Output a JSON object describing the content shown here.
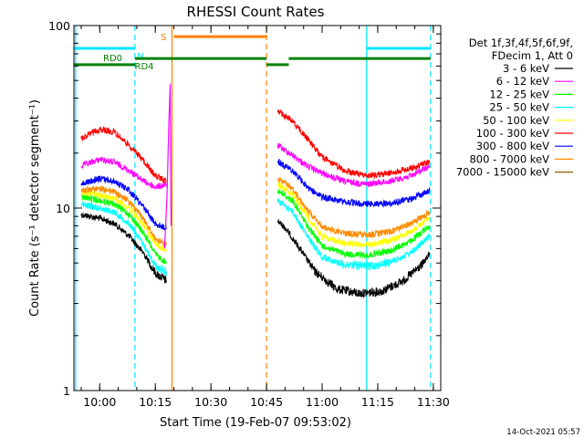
{
  "chart_data": {
    "type": "line",
    "title": "RHESSI Count Rates",
    "xlabel": "Start Time (19-Feb-07 09:53:02)",
    "ylabel": "Count Rate (s⁻¹ detector segment⁻¹)",
    "yscale": "log",
    "ylim": [
      1,
      100
    ],
    "xlim": [
      "09:53:02",
      "11:32:00"
    ],
    "x_ticks": [
      "10:00",
      "10:15",
      "10:30",
      "10:45",
      "11:00",
      "11:15",
      "11:30"
    ],
    "y_ticks": [
      "1",
      "10",
      "100"
    ],
    "footer_timestamp": "14-Oct-2021 05:57",
    "legend": {
      "header_line1": "Det 1f,3f,4f,5f,6f,9f,",
      "header_line2": "FDecim 1, Att 0",
      "placement": "right"
    },
    "series": [
      {
        "name": "3 - 6 keV",
        "color": "#000000",
        "segments": [
          [
            [
              "09:55",
              9.2
            ],
            [
              "10:00",
              8.8
            ],
            [
              "10:04",
              8.2
            ],
            [
              "10:08",
              7.0
            ],
            [
              "10:12",
              5.6
            ],
            [
              "10:15",
              4.4
            ],
            [
              "10:18",
              4.0
            ]
          ],
          [
            [
              "10:48",
              8.5
            ],
            [
              "10:50",
              7.8
            ],
            [
              "10:54",
              6.0
            ],
            [
              "10:58",
              4.5
            ],
            [
              "11:04",
              3.6
            ],
            [
              "11:10",
              3.4
            ],
            [
              "11:16",
              3.5
            ],
            [
              "11:22",
              4.0
            ],
            [
              "11:27",
              4.9
            ],
            [
              "11:29",
              5.6
            ]
          ]
        ]
      },
      {
        "name": "6 - 12 keV",
        "color": "#ff00ff",
        "segments": [
          [
            [
              "09:55",
              17
            ],
            [
              "10:00",
              18.5
            ],
            [
              "10:04",
              17.8
            ],
            [
              "10:08",
              16.0
            ],
            [
              "10:12",
              14.0
            ],
            [
              "10:15",
              13.0
            ],
            [
              "10:18",
              13.5
            ]
          ],
          [
            [
              "10:48",
              22
            ],
            [
              "10:52",
              19.5
            ],
            [
              "10:56",
              17.0
            ],
            [
              "11:00",
              15.5
            ],
            [
              "11:06",
              14.0
            ],
            [
              "11:12",
              13.5
            ],
            [
              "11:18",
              14.0
            ],
            [
              "11:24",
              15.0
            ],
            [
              "11:29",
              17.0
            ]
          ]
        ]
      },
      {
        "name": "12 - 25 keV",
        "color": "#00ff00",
        "segments": [
          [
            [
              "09:55",
              11.5
            ],
            [
              "10:00",
              11.0
            ],
            [
              "10:04",
              10.5
            ],
            [
              "10:08",
              9.2
            ],
            [
              "10:12",
              7.2
            ],
            [
              "10:15",
              5.6
            ],
            [
              "10:18",
              5.0
            ]
          ],
          [
            [
              "10:48",
              12.5
            ],
            [
              "10:52",
              11.0
            ],
            [
              "10:56",
              8.0
            ],
            [
              "11:00",
              6.2
            ],
            [
              "11:06",
              5.6
            ],
            [
              "11:12",
              5.5
            ],
            [
              "11:18",
              5.8
            ],
            [
              "11:24",
              6.6
            ],
            [
              "11:29",
              8.0
            ]
          ]
        ]
      },
      {
        "name": "25 - 50 keV",
        "color": "#00ffff",
        "segments": [
          [
            [
              "09:55",
              10.5
            ],
            [
              "10:00",
              10.0
            ],
            [
              "10:04",
              9.5
            ],
            [
              "10:08",
              8.2
            ],
            [
              "10:12",
              6.2
            ],
            [
              "10:15",
              4.8
            ],
            [
              "10:18",
              4.5
            ]
          ],
          [
            [
              "10:48",
              11.0
            ],
            [
              "10:52",
              9.6
            ],
            [
              "10:56",
              7.0
            ],
            [
              "11:00",
              5.4
            ],
            [
              "11:06",
              4.9
            ],
            [
              "11:12",
              4.8
            ],
            [
              "11:18",
              5.0
            ],
            [
              "11:24",
              5.7
            ],
            [
              "11:29",
              7.0
            ]
          ]
        ]
      },
      {
        "name": "50 - 100 keV",
        "color": "#ffff00",
        "segments": [
          [
            [
              "09:55",
              12.3
            ],
            [
              "10:00",
              11.8
            ],
            [
              "10:04",
              11.2
            ],
            [
              "10:08",
              10.0
            ],
            [
              "10:12",
              8.0
            ],
            [
              "10:15",
              6.4
            ],
            [
              "10:18",
              5.8
            ]
          ],
          [
            [
              "10:48",
              13.5
            ],
            [
              "10:52",
              12.0
            ],
            [
              "10:56",
              9.0
            ],
            [
              "11:00",
              7.0
            ],
            [
              "11:06",
              6.4
            ],
            [
              "11:12",
              6.3
            ],
            [
              "11:18",
              6.6
            ],
            [
              "11:24",
              7.4
            ],
            [
              "11:29",
              8.8
            ]
          ]
        ]
      },
      {
        "name": "100 - 300 keV",
        "color": "#ff0000",
        "segments": [
          [
            [
              "09:55",
              24
            ],
            [
              "10:00",
              27
            ],
            [
              "10:04",
              26
            ],
            [
              "10:08",
              22
            ],
            [
              "10:12",
              18
            ],
            [
              "10:15",
              15
            ],
            [
              "10:18",
              14
            ]
          ],
          [
            [
              "10:48",
              34
            ],
            [
              "10:52",
              30
            ],
            [
              "10:56",
              24
            ],
            [
              "11:00",
              19
            ],
            [
              "11:06",
              16
            ],
            [
              "11:12",
              15
            ],
            [
              "11:18",
              15.5
            ],
            [
              "11:24",
              16.5
            ],
            [
              "11:29",
              18
            ]
          ]
        ]
      },
      {
        "name": "300 - 800 keV",
        "color": "#0000ff",
        "segments": [
          [
            [
              "09:55",
              13.5
            ],
            [
              "10:00",
              14.5
            ],
            [
              "10:04",
              14.0
            ],
            [
              "10:08",
              12.5
            ],
            [
              "10:12",
              10.0
            ],
            [
              "10:15",
              8.2
            ],
            [
              "10:18",
              7.8
            ]
          ],
          [
            [
              "10:48",
              18
            ],
            [
              "10:52",
              16
            ],
            [
              "10:56",
              13
            ],
            [
              "11:00",
              11.5
            ],
            [
              "11:06",
              10.8
            ],
            [
              "11:12",
              10.5
            ],
            [
              "11:18",
              10.6
            ],
            [
              "11:24",
              11.2
            ],
            [
              "11:29",
              12.5
            ]
          ]
        ]
      },
      {
        "name": "800 - 7000 keV",
        "color": "#ff8c00",
        "segments": [
          [
            [
              "09:55",
              12.5
            ],
            [
              "10:00",
              12.8
            ],
            [
              "10:04",
              12.2
            ],
            [
              "10:08",
              10.8
            ],
            [
              "10:12",
              8.6
            ],
            [
              "10:15",
              6.8
            ],
            [
              "10:18",
              6.3
            ]
          ],
          [
            [
              "10:48",
              14.5
            ],
            [
              "10:52",
              12.8
            ],
            [
              "10:56",
              9.8
            ],
            [
              "11:00",
              7.9
            ],
            [
              "11:06",
              7.3
            ],
            [
              "11:12",
              7.1
            ],
            [
              "11:18",
              7.4
            ],
            [
              "11:24",
              8.2
            ],
            [
              "11:29",
              9.5
            ]
          ]
        ]
      },
      {
        "name": "7000 - 15000 keV",
        "color": "#8b5a00",
        "segments": []
      }
    ],
    "annotations": {
      "vertical_lines": [
        {
          "time": "09:53:30",
          "color": "#00e5ff",
          "style": "solid"
        },
        {
          "time": "10:09:30",
          "color": "#00e5ff",
          "style": "dashed"
        },
        {
          "time": "10:19:30",
          "color": "#ff8000",
          "style": "solid"
        },
        {
          "time": "10:45:00",
          "color": "#ff8000",
          "style": "dashed"
        },
        {
          "time": "11:12:00",
          "color": "#00e5ff",
          "style": "solid"
        },
        {
          "time": "11:29:15",
          "color": "#00e5ff",
          "style": "dashed"
        }
      ],
      "horizontal_bars": [
        {
          "label": "N",
          "color": "#00e5ff",
          "y": 75,
          "start": "09:53:02",
          "end": "10:09:30",
          "label_at": "10:11:00",
          "label_side": "below"
        },
        {
          "label": "",
          "color": "#00e5ff",
          "y": 75,
          "start": "11:12:00",
          "end": "11:29:15"
        },
        {
          "label": "S",
          "color": "#ff8000",
          "y": 87,
          "start": "10:20:00",
          "end": "10:45:00",
          "label_at": "10:18:00",
          "label_side": "left"
        },
        {
          "label": "RD0",
          "color": "#008000",
          "y": 61,
          "start": "09:53:02",
          "end": "10:09:30",
          "label_at": "10:03:30",
          "label_side": "above"
        },
        {
          "label": "RD4",
          "color": "#008000",
          "y": 66,
          "start": "10:09:30",
          "end": "10:45:00",
          "label_at": "10:12:00",
          "label_side": "below"
        },
        {
          "label": "",
          "color": "#008000",
          "y": 61,
          "start": "10:45:00",
          "end": "10:51:00"
        },
        {
          "label": "",
          "color": "#008000",
          "y": 66,
          "start": "10:51:00",
          "end": "11:29:15"
        }
      ]
    }
  }
}
